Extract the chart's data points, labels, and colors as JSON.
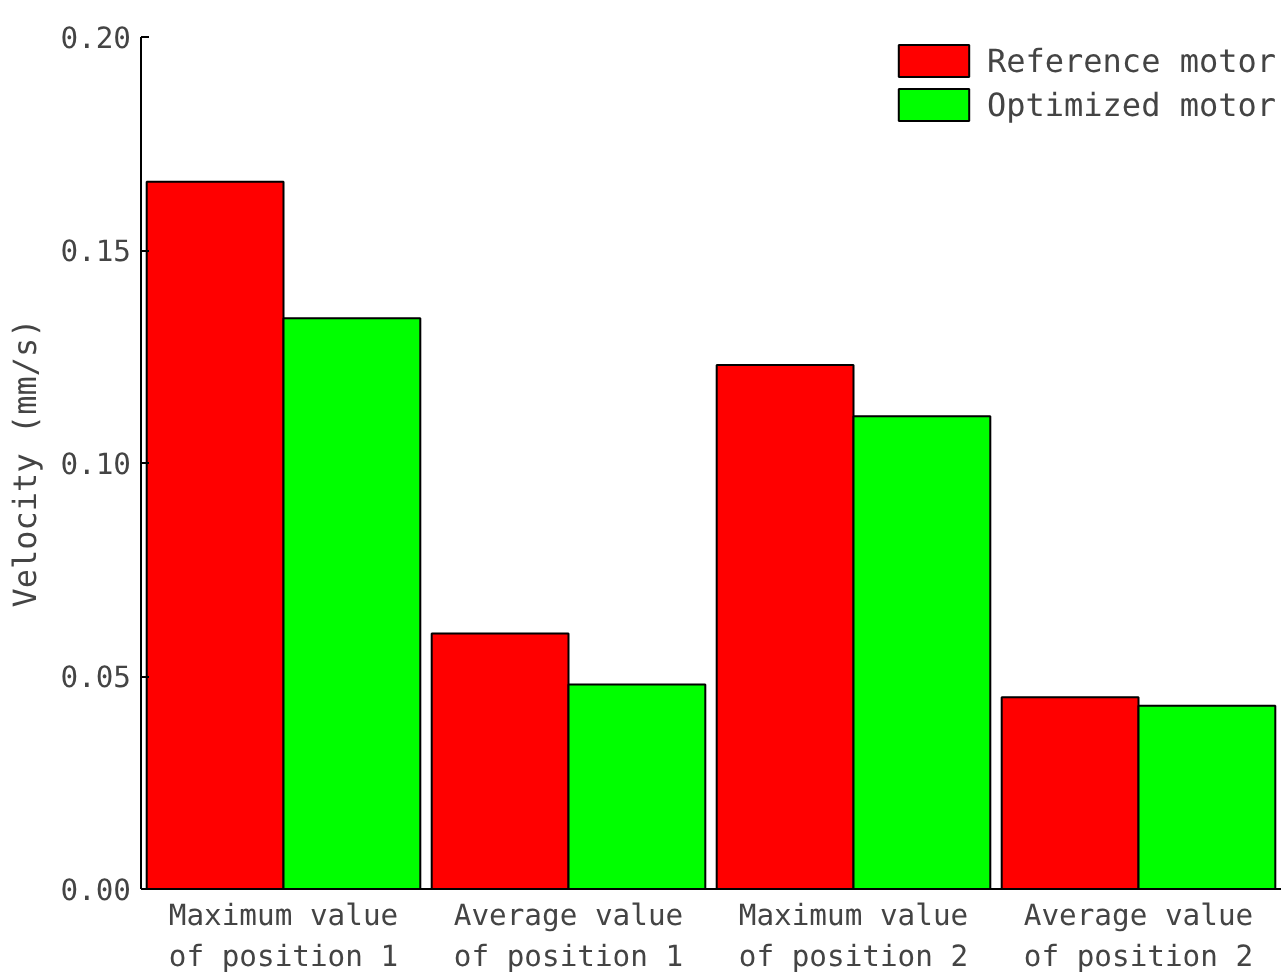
{
  "chart_data": {
    "type": "bar",
    "ylabel": "Velocity (mm/s)",
    "categories": [
      "Maximum value\nof position 1",
      "Average value\nof position 1",
      "Maximum value\nof position 2",
      "Average value\nof position 2"
    ],
    "series": [
      {
        "name": "Reference motor",
        "color": "#ff0000",
        "values": [
          0.166,
          0.06,
          0.123,
          0.045
        ]
      },
      {
        "name": "Optimized motor",
        "color": "#00ff00",
        "values": [
          0.134,
          0.048,
          0.111,
          0.043
        ]
      }
    ],
    "ylim": [
      0,
      0.2
    ],
    "yticks": [
      {
        "value": 0,
        "label": "0.00"
      },
      {
        "value": 0.05,
        "label": "0.05"
      },
      {
        "value": 0.1,
        "label": "0.10"
      },
      {
        "value": 0.15,
        "label": "0.15"
      },
      {
        "value": 0.2,
        "label": "0.20"
      }
    ],
    "grid": false,
    "legend": "top right"
  }
}
